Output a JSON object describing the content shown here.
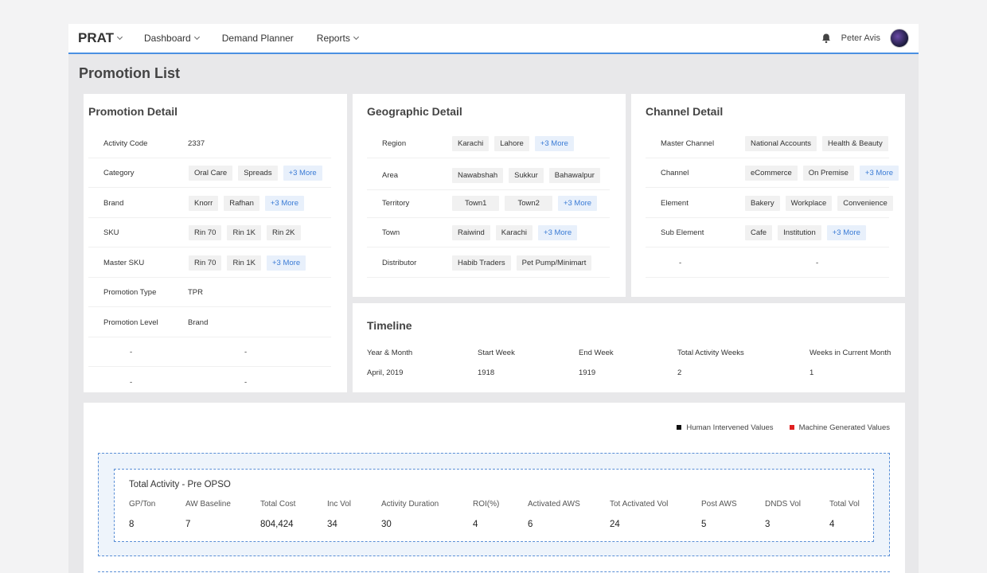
{
  "header": {
    "brand": "PRAT",
    "nav": [
      {
        "label": "Dashboard",
        "has_chevron": true
      },
      {
        "label": "Demand Planner",
        "has_chevron": false
      },
      {
        "label": "Reports",
        "has_chevron": true
      }
    ],
    "user_name": "Peter Avis",
    "icons": [
      "chevron-down-icon",
      "bell-icon"
    ],
    "accent_color": "#4a90e2"
  },
  "page_title": "Promotion List",
  "promotion_detail": {
    "title": "Promotion Detail",
    "rows": [
      {
        "label": "Activity Code",
        "value": "2337"
      },
      {
        "label": "Category",
        "chips": [
          "Oral Care",
          "Spreads"
        ],
        "more": "+3 More"
      },
      {
        "label": "Brand",
        "chips": [
          "Knorr",
          "Rafhan"
        ],
        "more": "+3 More"
      },
      {
        "label": "SKU",
        "chips": [
          "Rin 70",
          "Rin 1K",
          "Rin 2K"
        ]
      },
      {
        "label": "Master SKU",
        "chips": [
          "Rin 70",
          "Rin 1K"
        ],
        "more": "+3 More"
      },
      {
        "label": "Promotion Type",
        "value": "TPR"
      },
      {
        "label": "Promotion Level",
        "value": "Brand"
      },
      {
        "label": "-",
        "value": "-"
      },
      {
        "label": "-",
        "value": "-"
      }
    ]
  },
  "geographic_detail": {
    "title": "Geographic Detail",
    "rows": [
      {
        "label": "Region",
        "chips": [
          "Karachi",
          "Lahore"
        ],
        "more": "+3 More"
      },
      {
        "label": "Area",
        "chips": [
          "Nawabshah",
          "Sukkur",
          "Bahawalpur"
        ]
      },
      {
        "label": "Territory",
        "chips": [
          "Town1",
          "Town2"
        ],
        "more": "+3 More"
      },
      {
        "label": "Town",
        "chips": [
          "Raiwind",
          "Karachi"
        ],
        "more": "+3 More"
      },
      {
        "label": "Distributor",
        "chips": [
          "Habib Traders",
          "Pet Pump/Minimart"
        ]
      }
    ]
  },
  "channel_detail": {
    "title": "Channel Detail",
    "rows": [
      {
        "label": "Master Channel",
        "chips": [
          "National Accounts",
          "Health & Beauty"
        ]
      },
      {
        "label": "Channel",
        "chips": [
          "eCommerce",
          "On Premise"
        ],
        "more": "+3 More"
      },
      {
        "label": "Element",
        "chips": [
          "Bakery",
          "Workplace",
          "Convenience"
        ]
      },
      {
        "label": "Sub Element",
        "chips": [
          "Cafe",
          "Institution"
        ],
        "more": "+3 More"
      },
      {
        "label": "-",
        "value": "-"
      }
    ]
  },
  "timeline": {
    "title": "Timeline",
    "headers": [
      "Year & Month",
      "Start Week",
      "End Week",
      "Total Activity Weeks",
      "Weeks in Current Month"
    ],
    "values": [
      "April, 2019",
      "1918",
      "1919",
      "2",
      "1"
    ]
  },
  "legend": [
    {
      "label": "Human Intervened Values",
      "color": "#111111"
    },
    {
      "label": "Machine Generated Values",
      "color": "#e02020"
    }
  ],
  "total_activity": {
    "title": "Total Activity - Pre OPSO",
    "headers": [
      "GP/Ton",
      "AW Baseline",
      "Total Cost",
      "Inc Vol",
      "Activity Duration",
      "ROI(%)",
      "Activated AWS",
      "Tot Activated Vol",
      "Post AWS",
      "DNDS Vol",
      "Total Vol"
    ],
    "values": [
      "8",
      "7",
      "804,424",
      "34",
      "30",
      "4",
      "6",
      "24",
      "5",
      "3",
      "4"
    ]
  }
}
